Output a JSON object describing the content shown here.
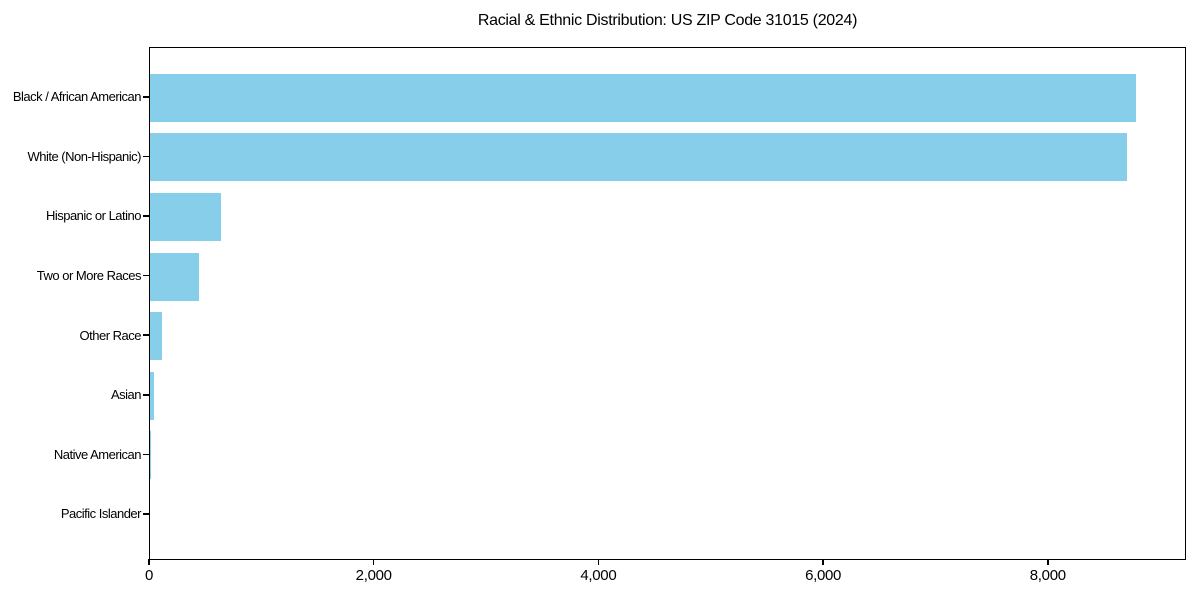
{
  "chart_data": {
    "type": "bar",
    "orientation": "horizontal",
    "title": "Racial & Ethnic Distribution: US ZIP Code 31015 (2024)",
    "categories": [
      "Black / African American",
      "White (Non-Hispanic)",
      "Hispanic or Latino",
      "Two or More Races",
      "Other Race",
      "Asian",
      "Native American",
      "Pacific Islander"
    ],
    "values": [
      8790,
      8715,
      630,
      435,
      110,
      40,
      12,
      0
    ],
    "xlabel": "",
    "ylabel": "",
    "xlim": [
      0,
      9230
    ],
    "xticks": [
      0,
      2000,
      4000,
      6000,
      8000
    ],
    "xtick_labels": [
      "0",
      "2,000",
      "4,000",
      "6,000",
      "8,000"
    ],
    "bar_color": "#87CEEB",
    "background_color": "#FFFFFF",
    "axis_color": "#000000",
    "text_color": "#000000",
    "grid": false,
    "legend": null,
    "bar_height_fraction": 0.8
  }
}
